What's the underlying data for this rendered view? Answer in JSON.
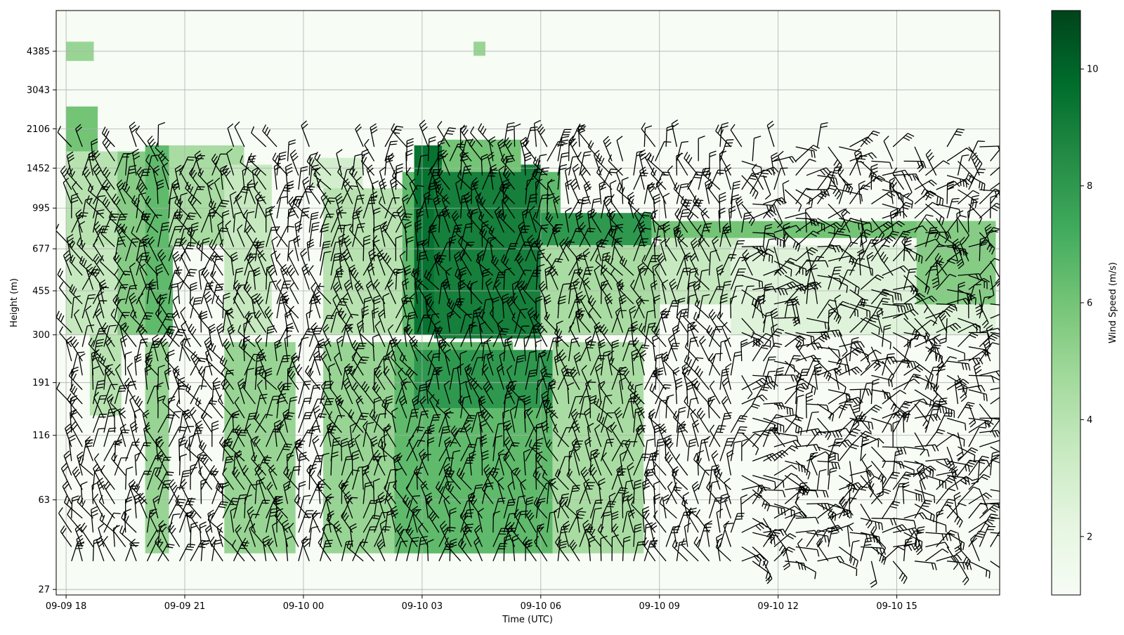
{
  "chart_data": {
    "type": "heatmap",
    "title": "",
    "xlabel": "Time (UTC)",
    "ylabel": "Height (m)",
    "x_ticks": [
      "09-09 18",
      "09-09 21",
      "09-10 00",
      "09-10 03",
      "09-10 06",
      "09-10 09",
      "09-10 12",
      "09-10 15"
    ],
    "y_ticks": [
      "27",
      "63",
      "116",
      "191",
      "300",
      "455",
      "677",
      "995",
      "1452",
      "2106",
      "3043",
      "4385"
    ],
    "y_scale": "log",
    "x_range_hours": [
      -0.25,
      23.6
    ],
    "colorbar": {
      "label": "Wind Speed (m/s)",
      "ticks": [
        "2",
        "4",
        "6",
        "8",
        "10"
      ],
      "range": [
        1,
        11
      ],
      "colormap": "Greens"
    },
    "grid": true,
    "overlay": "wind barbs",
    "wind_speed_regions": [
      {
        "time_hours": [
          0,
          0.7
        ],
        "height_m": [
          4000,
          4800
        ],
        "speed_ms": 5
      },
      {
        "time_hours": [
          0,
          0.8
        ],
        "height_m": [
          1700,
          2600
        ],
        "speed_ms": 6
      },
      {
        "time_hours": [
          0,
          1.4
        ],
        "height_m": [
          700,
          1700
        ],
        "speed_ms": 4
      },
      {
        "time_hours": [
          0,
          1.4
        ],
        "height_m": [
          300,
          700
        ],
        "speed_ms": 3.5
      },
      {
        "time_hours": [
          0.6,
          1.4
        ],
        "height_m": [
          140,
          300
        ],
        "speed_ms": 4
      },
      {
        "time_hours": [
          1.3,
          2.6
        ],
        "height_m": [
          300,
          1700
        ],
        "speed_ms": 5.5
      },
      {
        "time_hours": [
          2,
          2.7
        ],
        "height_m": [
          300,
          1800
        ],
        "speed_ms": 6.5
      },
      {
        "time_hours": [
          2,
          2.6
        ],
        "height_m": [
          38,
          280
        ],
        "speed_ms": 5
      },
      {
        "time_hours": [
          2.6,
          4.5
        ],
        "height_m": [
          700,
          1800
        ],
        "speed_ms": 4.5
      },
      {
        "time_hours": [
          4,
          5.2
        ],
        "height_m": [
          300,
          1500
        ],
        "speed_ms": 3.5
      },
      {
        "time_hours": [
          4,
          5.8
        ],
        "height_m": [
          38,
          280
        ],
        "speed_ms": 5
      },
      {
        "time_hours": [
          6.2,
          7.5
        ],
        "height_m": [
          1200,
          1600
        ],
        "speed_ms": 3
      },
      {
        "time_hours": [
          6.5,
          8.5
        ],
        "height_m": [
          300,
          1200
        ],
        "speed_ms": 4
      },
      {
        "time_hours": [
          6.5,
          8.5
        ],
        "height_m": [
          38,
          280
        ],
        "speed_ms": 5
      },
      {
        "time_hours": [
          8.3,
          11.3
        ],
        "height_m": [
          38,
          280
        ],
        "speed_ms": 6.5
      },
      {
        "time_hours": [
          8.5,
          12.5
        ],
        "height_m": [
          300,
          1400
        ],
        "speed_ms": 6.5
      },
      {
        "time_hours": [
          8.8,
          9.7
        ],
        "height_m": [
          300,
          1800
        ],
        "speed_ms": 9.5
      },
      {
        "time_hours": [
          9.7,
          12
        ],
        "height_m": [
          700,
          1500
        ],
        "speed_ms": 10.5
      },
      {
        "time_hours": [
          9.3,
          12
        ],
        "height_m": [
          290,
          1500
        ],
        "speed_ms": 9
      },
      {
        "time_hours": [
          9.5,
          11.5
        ],
        "height_m": [
          1400,
          1900
        ],
        "speed_ms": 6
      },
      {
        "time_hours": [
          8.8,
          12.3
        ],
        "height_m": [
          150,
          260
        ],
        "speed_ms": 8
      },
      {
        "time_hours": [
          8.8,
          12.3
        ],
        "height_m": [
          38,
          150
        ],
        "speed_ms": 6.5
      },
      {
        "time_hours": [
          12,
          14.8
        ],
        "height_m": [
          700,
          950
        ],
        "speed_ms": 8
      },
      {
        "time_hours": [
          12,
          15
        ],
        "height_m": [
          300,
          700
        ],
        "speed_ms": 4.5
      },
      {
        "time_hours": [
          12.3,
          14.6
        ],
        "height_m": [
          38,
          280
        ],
        "speed_ms": 4.5
      },
      {
        "time_hours": [
          14.8,
          23.5
        ],
        "height_m": [
          750,
          880
        ],
        "speed_ms": 6
      },
      {
        "time_hours": [
          15,
          17
        ],
        "height_m": [
          400,
          750
        ],
        "speed_ms": 3.5
      },
      {
        "time_hours": [
          16.8,
          23.5
        ],
        "height_m": [
          300,
          700
        ],
        "speed_ms": 2.5
      },
      {
        "time_hours": [
          21.5,
          23.5
        ],
        "height_m": [
          400,
          880
        ],
        "speed_ms": 5.5
      },
      {
        "time_hours": [
          10.3,
          10.6
        ],
        "height_m": [
          4200,
          4800
        ],
        "speed_ms": 5
      }
    ],
    "barb_region": {
      "time_hours": [
        0,
        23.5
      ],
      "height_m": [
        33,
        1900
      ]
    }
  }
}
